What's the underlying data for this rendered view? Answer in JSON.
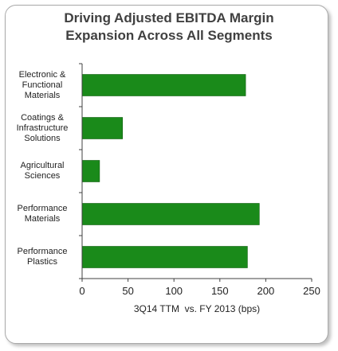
{
  "title_lines": [
    "Driving Adjusted EBITDA Margin",
    "Expansion Across All Segments"
  ],
  "colors": {
    "bar": "#1a8a1a",
    "bar_edge": "#0e5e0e",
    "axis": "#404040",
    "text": "#222222",
    "frame": "#a9a9a9"
  },
  "chart_data": {
    "type": "bar",
    "orientation": "horizontal",
    "title": "Driving Adjusted EBITDA Margin Expansion Across All Segments",
    "categories": [
      [
        "Electronic &",
        "Functional",
        "Materials"
      ],
      [
        "Coatings &",
        "Infrastructure",
        "Solutions"
      ],
      [
        "Agricultural",
        "Sciences"
      ],
      [
        "Performance",
        "Materials"
      ],
      [
        "Performance",
        "Plastics"
      ]
    ],
    "values": [
      178,
      44,
      19,
      193,
      180
    ],
    "xlabel": "3Q14 TTM  vs. FY 2013 (bps)",
    "ylabel": "",
    "xlim": [
      0,
      250
    ],
    "xticks": [
      "0",
      "50",
      "100",
      "150",
      "200",
      "250"
    ],
    "grid": false,
    "legend": "none"
  }
}
